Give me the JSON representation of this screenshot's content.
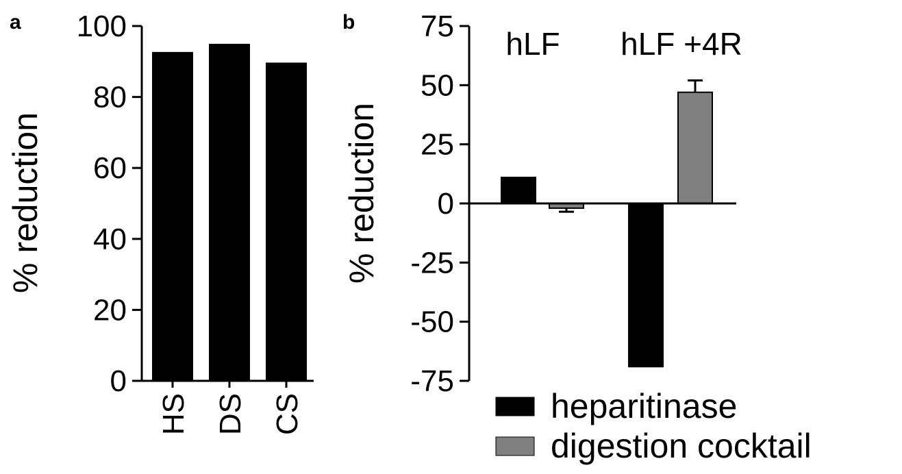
{
  "chart_data": [
    {
      "panel": "a",
      "type": "bar",
      "ylabel": "% reduction",
      "xlabel": "",
      "ylim": [
        0,
        100
      ],
      "yticks": [
        0,
        20,
        40,
        60,
        80,
        100
      ],
      "categories": [
        "HS",
        "DS",
        "CS"
      ],
      "values": [
        92.5,
        94.8,
        89.5
      ],
      "bar_color": "#000000"
    },
    {
      "panel": "b",
      "type": "bar",
      "ylabel": "% reduction",
      "xlabel": "",
      "ylim": [
        -75,
        75
      ],
      "yticks": [
        -75,
        -50,
        -25,
        0,
        25,
        50,
        75
      ],
      "groups": [
        "hLF",
        "hLF +4R"
      ],
      "series": [
        {
          "name": "heparitinase",
          "color": "#000000",
          "values": [
            11,
            -69
          ],
          "errors": [
            0,
            0
          ]
        },
        {
          "name": "digestion cocktail",
          "color": "#808080",
          "values": [
            -2,
            47
          ],
          "errors": [
            1.5,
            5
          ]
        }
      ],
      "legend_position": "bottom-right"
    }
  ]
}
